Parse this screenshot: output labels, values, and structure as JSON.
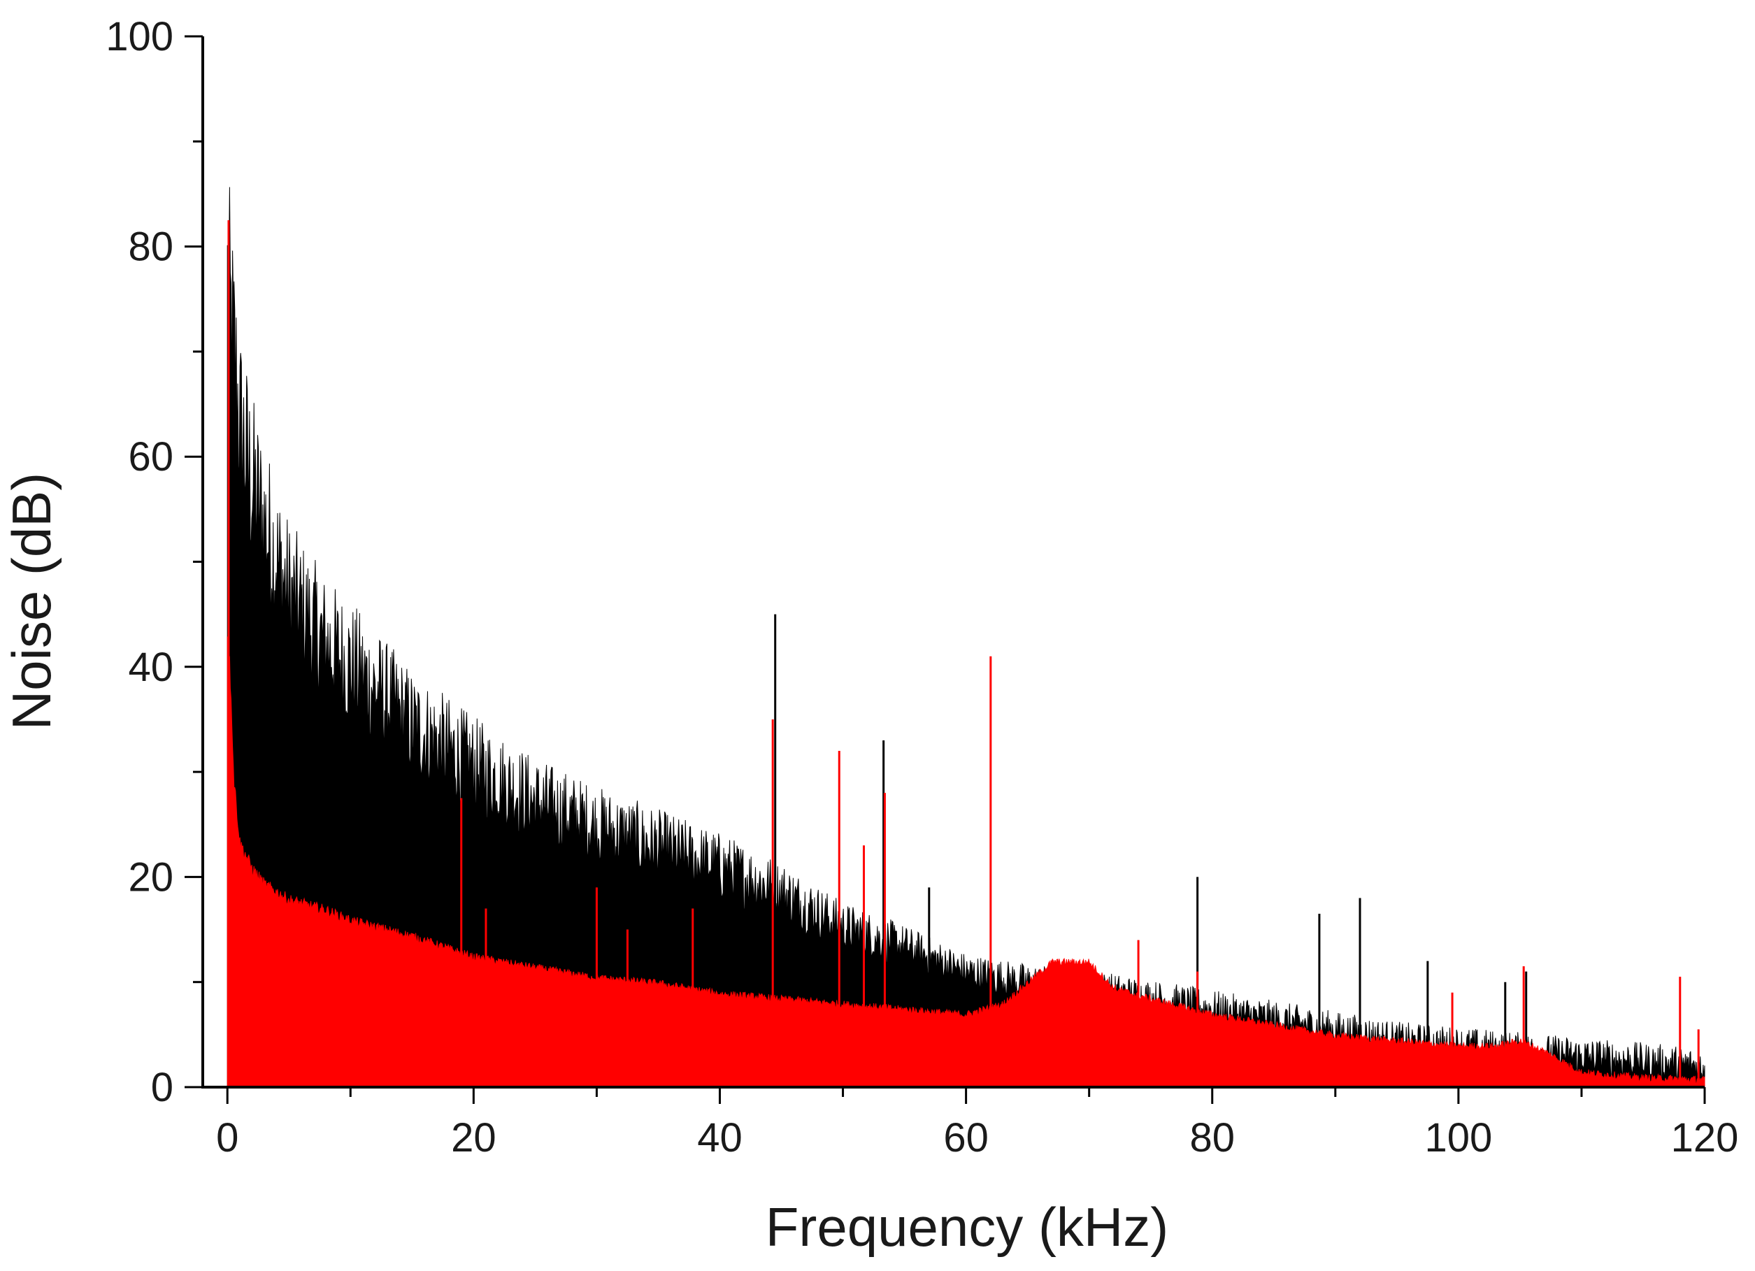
{
  "chart_data": {
    "type": "area",
    "title": "",
    "xlabel": "Frequency (kHz)",
    "ylabel": "Noise (dB)",
    "xlim": [
      -2,
      120
    ],
    "ylim": [
      0,
      100
    ],
    "x_ticks": [
      0,
      20,
      40,
      60,
      80,
      100,
      120
    ],
    "x_tick_labels": [
      "0",
      "20",
      "40",
      "60",
      "80",
      "100",
      "120"
    ],
    "y_ticks": [
      0,
      20,
      40,
      60,
      80,
      100
    ],
    "y_tick_labels": [
      "0",
      "20",
      "40",
      "60",
      "80",
      "100"
    ],
    "x_minor_step": 10,
    "y_minor_step": 10,
    "grid": false,
    "legend": "none",
    "series": [
      {
        "color": "#000000",
        "envelope_x": [
          0.0,
          0.3,
          0.6,
          1,
          2,
          3,
          5,
          8,
          10,
          15,
          20,
          25,
          30,
          35,
          40,
          45,
          50,
          55,
          60,
          65,
          70,
          75,
          80,
          85,
          90,
          95,
          100,
          105,
          110,
          115,
          120
        ],
        "envelope_y": [
          80.0,
          76.0,
          72.0,
          66.0,
          60.0,
          56.0,
          49.0,
          44.0,
          42.0,
          36.0,
          32.0,
          28.5,
          26.0,
          24.0,
          22.0,
          19.5,
          16.0,
          14.0,
          11.5,
          10.5,
          10.0,
          9.0,
          8.0,
          7.0,
          6.0,
          5.0,
          4.5,
          4.0,
          3.5,
          3.0,
          2.5
        ],
        "spikes": [
          {
            "x": 44.5,
            "y": 45.0
          },
          {
            "x": 53.3,
            "y": 33.0
          },
          {
            "x": 57.0,
            "y": 19.0
          },
          {
            "x": 78.8,
            "y": 20.0
          },
          {
            "x": 88.7,
            "y": 16.5
          },
          {
            "x": 92.0,
            "y": 18.0
          },
          {
            "x": 97.5,
            "y": 12.0
          },
          {
            "x": 103.8,
            "y": 10.0
          },
          {
            "x": 105.5,
            "y": 11.0
          }
        ]
      },
      {
        "color": "#ff0000",
        "envelope_x": [
          0.0,
          0.3,
          0.5,
          1,
          2,
          3,
          5,
          8,
          10,
          15,
          20,
          25,
          30,
          35,
          40,
          45,
          50,
          55,
          60,
          63,
          65,
          67,
          70,
          72,
          75,
          80,
          85,
          90,
          95,
          100,
          103,
          105,
          107,
          110,
          115,
          120
        ],
        "envelope_y": [
          44.0,
          38.0,
          30.0,
          23.5,
          21.0,
          19.5,
          18.0,
          17.0,
          16.0,
          14.5,
          12.5,
          11.5,
          10.5,
          10.0,
          9.0,
          8.5,
          8.0,
          7.5,
          7.0,
          8.0,
          10.0,
          12.0,
          12.0,
          9.5,
          8.5,
          7.0,
          6.0,
          5.0,
          4.5,
          4.0,
          4.0,
          4.5,
          3.5,
          1.5,
          1.0,
          0.8
        ],
        "spikes": [
          {
            "x": 0.1,
            "y": 82.5
          },
          {
            "x": 19.0,
            "y": 27.5
          },
          {
            "x": 21.0,
            "y": 17.0
          },
          {
            "x": 30.0,
            "y": 19.0
          },
          {
            "x": 32.5,
            "y": 15.0
          },
          {
            "x": 37.8,
            "y": 17.0
          },
          {
            "x": 44.3,
            "y": 35.0
          },
          {
            "x": 49.7,
            "y": 32.0
          },
          {
            "x": 51.7,
            "y": 23.0
          },
          {
            "x": 53.4,
            "y": 28.0
          },
          {
            "x": 62.0,
            "y": 41.0
          },
          {
            "x": 74.0,
            "y": 14.0
          },
          {
            "x": 78.8,
            "y": 11.0
          },
          {
            "x": 99.5,
            "y": 9.0
          },
          {
            "x": 105.3,
            "y": 11.5
          },
          {
            "x": 118.0,
            "y": 10.5
          },
          {
            "x": 119.5,
            "y": 5.5
          }
        ]
      }
    ]
  }
}
